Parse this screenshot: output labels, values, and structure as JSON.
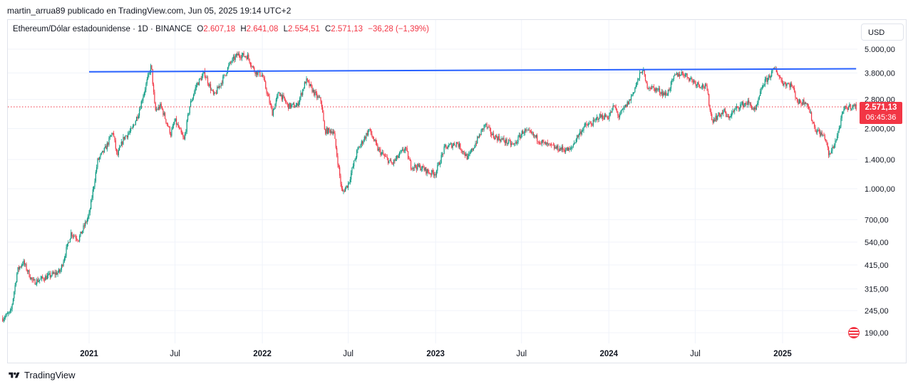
{
  "header": {
    "publisher_line": "martin_arrua89 publicado en TradingView.com, Jun 05, 2025 19:14 UTC+2"
  },
  "legend": {
    "symbol": "Ethereum/Dólar estadounidense · 1D · BINANCE",
    "o_label": "O",
    "o_value": "2.607,18",
    "h_label": "H",
    "h_value": "2.641,08",
    "l_label": "L",
    "l_value": "2.554,51",
    "c_label": "C",
    "c_value": "2.571,13",
    "change": "−36,28 (−1,39%)"
  },
  "currency_button": "USD",
  "price_badge": {
    "price": "2.571,13",
    "countdown": "06:45:36"
  },
  "footer": {
    "brand": "TradingView"
  },
  "colors": {
    "up": "#089981",
    "down": "#f23645",
    "trendline": "#2962ff",
    "grid": "#f0f3fa"
  },
  "chart_data": {
    "type": "candlestick",
    "scale": "log",
    "y_ticks": [
      "5.000,00",
      "3.800,00",
      "2.800,00",
      "2.000,00",
      "1.400,00",
      "1.000,00",
      "700,00",
      "540,00",
      "415,00",
      "315,00",
      "245,00",
      "190,00"
    ],
    "y_tick_values": [
      5000,
      3800,
      2800,
      2000,
      1400,
      1000,
      700,
      540,
      415,
      315,
      245,
      190
    ],
    "x_ticks": [
      {
        "label": "2021",
        "date": "2021-01-01",
        "bold": true
      },
      {
        "label": "Jul",
        "date": "2021-07-01",
        "bold": false
      },
      {
        "label": "2022",
        "date": "2022-01-01",
        "bold": true
      },
      {
        "label": "Jul",
        "date": "2022-07-01",
        "bold": false
      },
      {
        "label": "2023",
        "date": "2023-01-01",
        "bold": true
      },
      {
        "label": "Jul",
        "date": "2023-07-01",
        "bold": false
      },
      {
        "label": "2024",
        "date": "2024-01-01",
        "bold": true
      },
      {
        "label": "Jul",
        "date": "2024-07-01",
        "bold": false
      },
      {
        "label": "2025",
        "date": "2025-01-01",
        "bold": true
      }
    ],
    "x_range": [
      "2020-07-03",
      "2025-06-05"
    ],
    "y_range": [
      170,
      6000
    ],
    "price_series": [
      [
        "2020-07-03",
        225
      ],
      [
        "2020-07-20",
        240
      ],
      [
        "2020-08-03",
        390
      ],
      [
        "2020-08-15",
        430
      ],
      [
        "2020-09-05",
        340
      ],
      [
        "2020-10-01",
        360
      ],
      [
        "2020-11-01",
        385
      ],
      [
        "2020-11-24",
        600
      ],
      [
        "2020-12-10",
        560
      ],
      [
        "2021-01-01",
        740
      ],
      [
        "2021-01-19",
        1380
      ],
      [
        "2021-02-05",
        1600
      ],
      [
        "2021-02-20",
        1930
      ],
      [
        "2021-03-01",
        1450
      ],
      [
        "2021-03-15",
        1800
      ],
      [
        "2021-04-01",
        1970
      ],
      [
        "2021-04-15",
        2400
      ],
      [
        "2021-05-12",
        4150
      ],
      [
        "2021-05-20",
        2450
      ],
      [
        "2021-06-01",
        2600
      ],
      [
        "2021-06-22",
        1880
      ],
      [
        "2021-07-01",
        2200
      ],
      [
        "2021-07-20",
        1750
      ],
      [
        "2021-08-01",
        2600
      ],
      [
        "2021-08-15",
        3300
      ],
      [
        "2021-09-01",
        3800
      ],
      [
        "2021-09-21",
        2900
      ],
      [
        "2021-10-10",
        3550
      ],
      [
        "2021-10-25",
        4250
      ],
      [
        "2021-11-10",
        4700
      ],
      [
        "2021-12-01",
        4600
      ],
      [
        "2021-12-15",
        3900
      ],
      [
        "2022-01-01",
        3700
      ],
      [
        "2022-01-22",
        2400
      ],
      [
        "2022-02-05",
        3050
      ],
      [
        "2022-02-24",
        2600
      ],
      [
        "2022-03-15",
        2600
      ],
      [
        "2022-04-03",
        3500
      ],
      [
        "2022-04-25",
        2900
      ],
      [
        "2022-05-05",
        2750
      ],
      [
        "2022-05-12",
        1950
      ],
      [
        "2022-05-31",
        1950
      ],
      [
        "2022-06-18",
        950
      ],
      [
        "2022-07-01",
        1060
      ],
      [
        "2022-07-20",
        1550
      ],
      [
        "2022-08-14",
        1980
      ],
      [
        "2022-09-01",
        1580
      ],
      [
        "2022-09-15",
        1450
      ],
      [
        "2022-10-01",
        1330
      ],
      [
        "2022-10-29",
        1600
      ],
      [
        "2022-11-10",
        1300
      ],
      [
        "2022-12-01",
        1280
      ],
      [
        "2022-12-20",
        1200
      ],
      [
        "2023-01-01",
        1200
      ],
      [
        "2023-01-20",
        1600
      ],
      [
        "2023-02-15",
        1700
      ],
      [
        "2023-03-10",
        1420
      ],
      [
        "2023-04-15",
        2100
      ],
      [
        "2023-05-01",
        1850
      ],
      [
        "2023-06-15",
        1650
      ],
      [
        "2023-07-05",
        1950
      ],
      [
        "2023-07-20",
        1890
      ],
      [
        "2023-08-17",
        1680
      ],
      [
        "2023-09-10",
        1600
      ],
      [
        "2023-10-12",
        1560
      ],
      [
        "2023-10-25",
        1800
      ],
      [
        "2023-11-10",
        2050
      ],
      [
        "2023-12-01",
        2150
      ],
      [
        "2023-12-10",
        2300
      ],
      [
        "2024-01-01",
        2300
      ],
      [
        "2024-01-12",
        2600
      ],
      [
        "2024-01-22",
        2300
      ],
      [
        "2024-02-15",
        2800
      ],
      [
        "2024-03-12",
        4000
      ],
      [
        "2024-03-20",
        3300
      ],
      [
        "2024-04-15",
        3100
      ],
      [
        "2024-05-01",
        2950
      ],
      [
        "2024-05-20",
        3700
      ],
      [
        "2024-06-05",
        3800
      ],
      [
        "2024-07-01",
        3400
      ],
      [
        "2024-07-25",
        3200
      ],
      [
        "2024-08-05",
        2200
      ],
      [
        "2024-09-01",
        2450
      ],
      [
        "2024-09-06",
        2250
      ],
      [
        "2024-10-01",
        2600
      ],
      [
        "2024-10-20",
        2700
      ],
      [
        "2024-11-05",
        2450
      ],
      [
        "2024-11-20",
        3300
      ],
      [
        "2024-12-16",
        4000
      ],
      [
        "2025-01-01",
        3400
      ],
      [
        "2025-01-20",
        3300
      ],
      [
        "2025-02-03",
        2700
      ],
      [
        "2025-02-20",
        2750
      ],
      [
        "2025-03-10",
        2000
      ],
      [
        "2025-04-01",
        1800
      ],
      [
        "2025-04-09",
        1450
      ],
      [
        "2025-04-25",
        1800
      ],
      [
        "2025-05-10",
        2500
      ],
      [
        "2025-05-25",
        2600
      ],
      [
        "2025-06-05",
        2571
      ]
    ],
    "last_price": 2571.13,
    "horizontal_line": {
      "price": 2571.13,
      "style": "dotted"
    },
    "trendline": {
      "start": [
        "2021-01-01",
        3850
      ],
      "end": [
        "2025-06-05",
        3990
      ]
    }
  }
}
